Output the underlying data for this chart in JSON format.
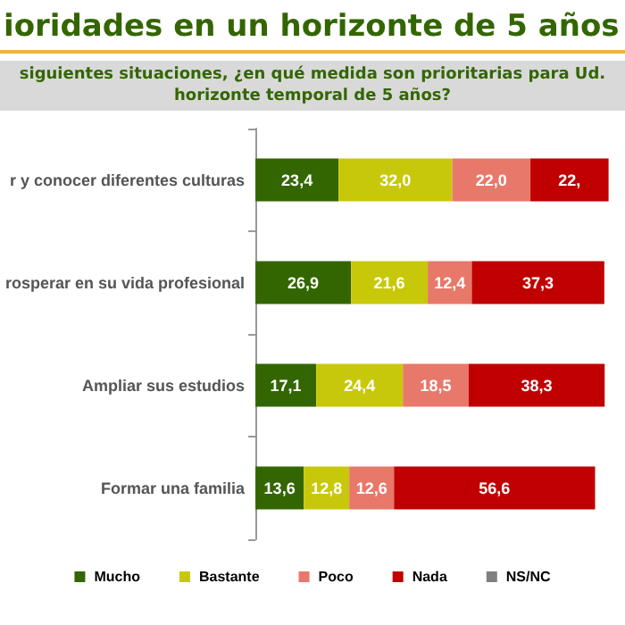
{
  "chart_data": {
    "type": "bar",
    "orientation": "horizontal",
    "stacked": true,
    "title": "ioridades en un horizonte de 5 años",
    "subtitle": "siguientes situaciones, ¿en qué medida son prioritarias para Ud.\nhorizonte temporal de 5 años?",
    "categories": [
      "r y conocer diferentes culturas",
      "rosperar en su vida profesional",
      "Ampliar sus estudios",
      "Formar una familia"
    ],
    "series": [
      {
        "name": "Mucho",
        "color": "#336600",
        "values": [
          23.4,
          26.9,
          17.1,
          13.6
        ],
        "value_labels": [
          "23,4",
          "26,9",
          "17,1",
          "13,6"
        ]
      },
      {
        "name": "Bastante",
        "color": "#c8c80a",
        "values": [
          32.0,
          21.6,
          24.4,
          12.8
        ],
        "value_labels": [
          "32,0",
          "21,6",
          "24,4",
          "12,8"
        ]
      },
      {
        "name": "Poco",
        "color": "#e8786a",
        "values": [
          22.0,
          12.4,
          18.5,
          12.6
        ],
        "value_labels": [
          "22,0",
          "12,4",
          "18,5",
          "12,6"
        ]
      },
      {
        "name": "Nada",
        "color": "#c00000",
        "values": [
          22,
          37.3,
          38.3,
          56.6
        ],
        "value_labels": [
          "22,",
          "37,3",
          "38,3",
          "56,6"
        ]
      },
      {
        "name": "NS/NC",
        "color": "#808080",
        "values": [
          null,
          null,
          null,
          null
        ],
        "value_labels": [
          null,
          null,
          null,
          null
        ]
      }
    ],
    "xlim": [
      0,
      100
    ],
    "tick_labels": "y",
    "legend": "bottom"
  }
}
